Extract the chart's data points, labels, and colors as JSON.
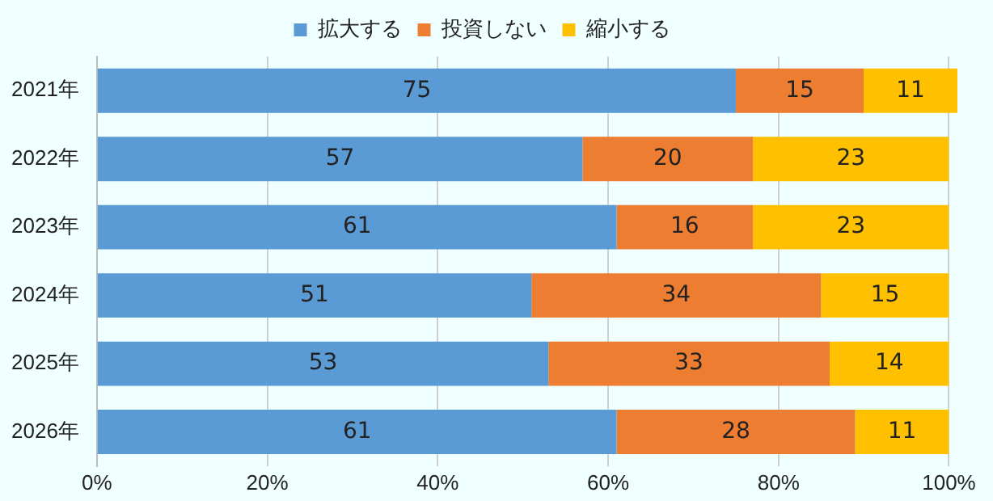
{
  "chart_data": {
    "type": "bar",
    "orientation": "horizontal",
    "stacked": true,
    "data_labels": true,
    "legend": "top",
    "grid": "x",
    "categories": [
      "2021年",
      "2022年",
      "2023年",
      "2024年",
      "2025年",
      "2026年"
    ],
    "xlim": [
      0,
      101
    ],
    "xticks": [
      {
        "value": 0,
        "label": "0%"
      },
      {
        "value": 20,
        "label": "20%"
      },
      {
        "value": 40,
        "label": "40%"
      },
      {
        "value": 60,
        "label": "60%"
      },
      {
        "value": 80,
        "label": "80%"
      },
      {
        "value": 100,
        "label": "100%"
      }
    ],
    "series": [
      {
        "name": "拡大する",
        "color": "#5b9bd5",
        "values": [
          75,
          57,
          61,
          51,
          53,
          61
        ]
      },
      {
        "name": "投資しない",
        "color": "#ed7d31",
        "values": [
          15,
          20,
          16,
          34,
          33,
          28
        ]
      },
      {
        "name": "縮小する",
        "color": "#ffc000",
        "values": [
          11,
          23,
          23,
          15,
          14,
          11
        ]
      }
    ]
  }
}
